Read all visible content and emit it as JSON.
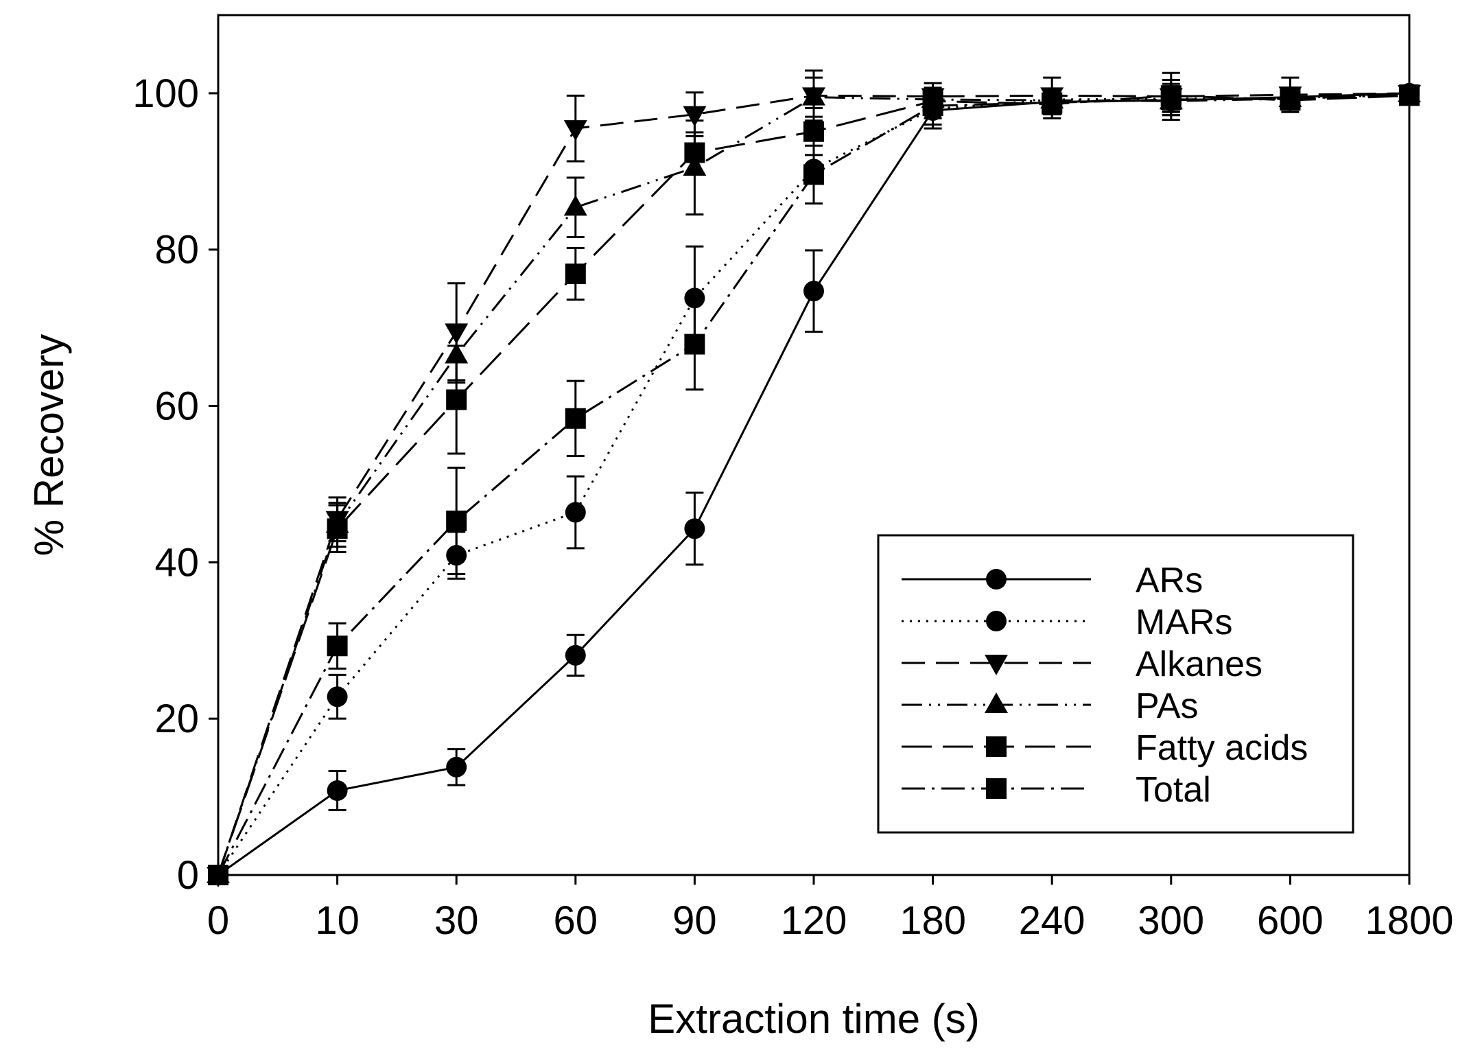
{
  "chart_data": {
    "type": "line",
    "title": "",
    "xlabel": "Extraction time (s)",
    "ylabel": "% Recovery",
    "categories": [
      "0",
      "10",
      "30",
      "60",
      "90",
      "120",
      "180",
      "240",
      "300",
      "600",
      "1800"
    ],
    "ylim": [
      0,
      110
    ],
    "yticks": [
      "0",
      "20",
      "40",
      "60",
      "80",
      "100"
    ],
    "grid": false,
    "legend_position": "bottom-right",
    "series": [
      {
        "name": "ARs",
        "marker": "circle",
        "line": "solid",
        "values": [
          0,
          10.8,
          13.8,
          28.1,
          44.3,
          74.7,
          97.8,
          98.9,
          99.1,
          99.5,
          100
        ],
        "errors": [
          0,
          2.5,
          2.3,
          2.6,
          4.6,
          5.2,
          2.3,
          1.2,
          1.5,
          1.0,
          0.8
        ]
      },
      {
        "name": "MARs",
        "marker": "circle",
        "line": "dotted",
        "values": [
          0,
          22.8,
          40.9,
          46.4,
          73.8,
          90.3,
          98.0,
          99.2,
          99.3,
          99.4,
          99.9
        ],
        "errors": [
          0,
          2.8,
          3.0,
          4.6,
          6.6,
          4.4,
          2.0,
          1.4,
          1.6,
          1.2,
          0.8
        ]
      },
      {
        "name": "Alkanes",
        "marker": "triangle-down",
        "line": "dashed",
        "values": [
          0,
          45.5,
          69.5,
          95.5,
          97.3,
          99.7,
          99.6,
          99.7,
          99.6,
          99.8,
          100
        ],
        "errors": [
          0,
          2.8,
          6.2,
          4.2,
          2.8,
          3.2,
          1.7,
          2.3,
          3.0,
          2.2,
          1.0
        ]
      },
      {
        "name": "PAs",
        "marker": "triangle-up",
        "line": "dash-dot-dot",
        "values": [
          0,
          44.8,
          66.5,
          85.4,
          90.5,
          99.5,
          99.2,
          99.1,
          99.0,
          99.3,
          99.9
        ],
        "errors": [
          0,
          2.8,
          3.5,
          3.8,
          6.0,
          2.5,
          1.5,
          1.4,
          1.8,
          1.3,
          0.9
        ]
      },
      {
        "name": "Fatty acids",
        "marker": "square",
        "line": "long-dash",
        "values": [
          0,
          44.3,
          60.8,
          76.9,
          92.4,
          95.1,
          99.0,
          98.6,
          99.7,
          99.1,
          99.7
        ],
        "errors": [
          0,
          3.0,
          6.9,
          3.3,
          2.6,
          3.0,
          1.4,
          1.8,
          2.0,
          1.2,
          1.0
        ]
      },
      {
        "name": "Total",
        "marker": "square",
        "line": "dash-dot",
        "values": [
          0,
          29.3,
          45.3,
          58.4,
          67.9,
          89.6,
          98.4,
          98.8,
          99.2,
          99.3,
          99.8
        ],
        "errors": [
          0,
          2.9,
          6.8,
          4.8,
          5.8,
          3.7,
          1.6,
          1.5,
          2.0,
          1.3,
          1.0
        ]
      }
    ]
  }
}
